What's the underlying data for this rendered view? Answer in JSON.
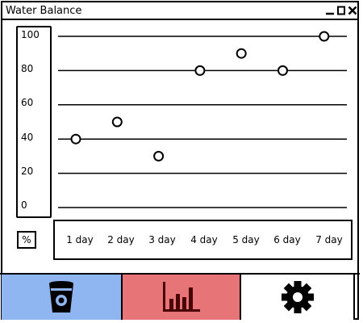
{
  "window": {
    "title": "Water Balance"
  },
  "chart_data": {
    "type": "scatter",
    "categories": [
      "1 day",
      "2 day",
      "3 day",
      "4 day",
      "5 day",
      "6 day",
      "7 day"
    ],
    "values": [
      40,
      50,
      30,
      80,
      90,
      80,
      100
    ],
    "yticks": [
      "100",
      "80",
      "60",
      "40",
      "20",
      "0"
    ],
    "ylim": [
      0,
      100
    ],
    "ylabel": "%",
    "grid": true
  },
  "tabs": [
    {
      "name": "water",
      "icon": "bucket-icon",
      "color": "#8fb6f0"
    },
    {
      "name": "statistics",
      "icon": "bar-chart-icon",
      "color": "#e77476",
      "active": true
    },
    {
      "name": "settings",
      "icon": "gear-icon",
      "color": "#ffffff"
    }
  ]
}
